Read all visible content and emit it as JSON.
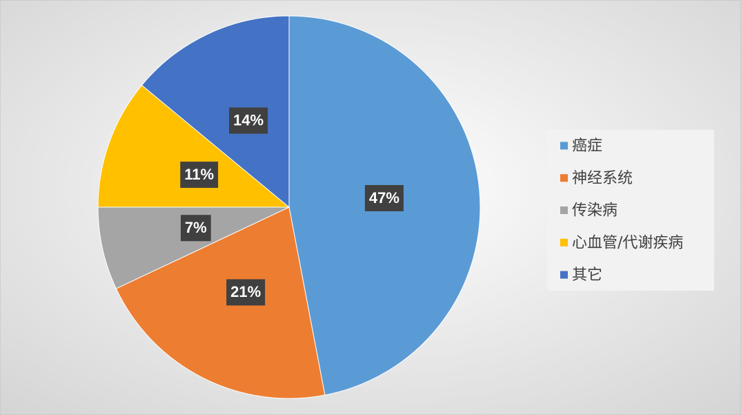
{
  "chart_data": {
    "type": "pie",
    "categories": [
      "癌症",
      "神经系统",
      "传染病",
      "心血管/代谢疾病",
      "其它"
    ],
    "values": [
      47,
      21,
      7,
      11,
      14
    ],
    "value_labels": [
      "47%",
      "21%",
      "7%",
      "11%",
      "14%"
    ],
    "colors": [
      "#5b9bd5",
      "#ed7d31",
      "#a5a5a5",
      "#ffc000",
      "#4472c4"
    ],
    "legend": "right"
  }
}
